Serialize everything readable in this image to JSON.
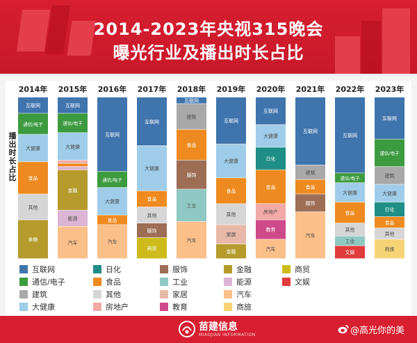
{
  "header": {
    "title_line1": "2014-2023年央视315晚会",
    "title_line2": "曝光行业及播出时长占比"
  },
  "colors": {
    "brand_red": "#d71f30"
  },
  "footer": {
    "brand": "苗建信息",
    "brand_en": "MIAOJIAN INFORMATION",
    "watermark": "@高光你的美",
    "logo_icon": "miaojian-logo-icon",
    "weibo_icon": "weibo-icon"
  },
  "chart_data": {
    "type": "bar",
    "stacked": true,
    "normalized": true,
    "title": "2014-2023年央视315晚会曝光行业及播出时长占比",
    "ylabel": "播出时长占比",
    "categories": [
      "2014年",
      "2015年",
      "2016年",
      "2017年",
      "2018年",
      "2019年",
      "2020年",
      "2021年",
      "2022年",
      "2023年"
    ],
    "industries": [
      {
        "name": "互联网",
        "color": "#3f74ad"
      },
      {
        "name": "通信/电子",
        "color": "#3c9a3f"
      },
      {
        "name": "建筑",
        "color": "#a9a9a9"
      },
      {
        "name": "大健康",
        "color": "#9fcde9"
      },
      {
        "name": "日化",
        "color": "#1f8e86"
      },
      {
        "name": "食品",
        "color": "#ee8a1f"
      },
      {
        "name": "其他",
        "color": "#d6d6d6"
      },
      {
        "name": "房地产",
        "color": "#f2aaa6"
      },
      {
        "name": "服饰",
        "color": "#9e6d55"
      },
      {
        "name": "工业",
        "color": "#8fc9c3"
      },
      {
        "name": "家居",
        "color": "#e8b9a8"
      },
      {
        "name": "教育",
        "color": "#cf4a8a"
      },
      {
        "name": "金融",
        "color": "#b49b2c"
      },
      {
        "name": "能源",
        "color": "#dcb4d4"
      },
      {
        "name": "汽车",
        "color": "#fbbf8a"
      },
      {
        "name": "商贸",
        "color": "#cdbb1c"
      },
      {
        "name": "商旅",
        "color": "#f6d476"
      },
      {
        "name": "文娱",
        "color": "#e23b3b"
      }
    ],
    "bars": [
      {
        "year": "2014年",
        "segments": [
          {
            "industry": "互联网",
            "value": 10,
            "label": "互联网"
          },
          {
            "industry": "通信/电子",
            "value": 13,
            "label": "通信/电子"
          },
          {
            "industry": "大健康",
            "value": 17,
            "label": "大健康"
          },
          {
            "industry": "食品",
            "value": 20,
            "label": "食品"
          },
          {
            "industry": "其他",
            "value": 16,
            "label": "其他"
          },
          {
            "industry": "金融",
            "value": 24,
            "label": "金融"
          }
        ]
      },
      {
        "year": "2015年",
        "segments": [
          {
            "industry": "互联网",
            "value": 10,
            "label": "互联网"
          },
          {
            "industry": "通信/电子",
            "value": 12,
            "label": "通信/电子"
          },
          {
            "industry": "大健康",
            "value": 17,
            "label": "大健康"
          },
          {
            "industry": "房地产",
            "value": 2,
            "label": ""
          },
          {
            "industry": "食品",
            "value": 2,
            "label": ""
          },
          {
            "industry": "能源",
            "value": 2,
            "label": ""
          },
          {
            "industry": "金融",
            "value": 25,
            "label": "金融"
          },
          {
            "industry": "能源",
            "value": 10,
            "label": "能源"
          },
          {
            "industry": "汽车",
            "value": 20,
            "label": "汽车"
          }
        ]
      },
      {
        "year": "2016年",
        "segments": [
          {
            "industry": "互联网",
            "value": 46,
            "label": "互联网"
          },
          {
            "industry": "通信/电子",
            "value": 10,
            "label": "通信/电子"
          },
          {
            "industry": "大健康",
            "value": 17,
            "label": "大健康"
          },
          {
            "industry": "食品",
            "value": 6,
            "label": "食品"
          },
          {
            "industry": "汽车",
            "value": 21,
            "label": "汽车"
          }
        ]
      },
      {
        "year": "2017年",
        "segments": [
          {
            "industry": "互联网",
            "value": 30,
            "label": "互联网"
          },
          {
            "industry": "大健康",
            "value": 28,
            "label": "大健康"
          },
          {
            "industry": "食品",
            "value": 10,
            "label": "食品"
          },
          {
            "industry": "其他",
            "value": 10,
            "label": "其他"
          },
          {
            "industry": "服饰",
            "value": 9,
            "label": "服饰"
          },
          {
            "industry": "商贸",
            "value": 13,
            "label": "商贸"
          }
        ]
      },
      {
        "year": "2018年",
        "segments": [
          {
            "industry": "互联网",
            "value": 4,
            "label": "互联网"
          },
          {
            "industry": "建筑",
            "value": 16,
            "label": "建筑"
          },
          {
            "industry": "食品",
            "value": 19,
            "label": "食品"
          },
          {
            "industry": "服饰",
            "value": 18,
            "label": "服饰"
          },
          {
            "industry": "工业",
            "value": 20,
            "label": "工业"
          },
          {
            "industry": "汽车",
            "value": 23,
            "label": "汽车"
          }
        ]
      },
      {
        "year": "2019年",
        "segments": [
          {
            "industry": "互联网",
            "value": 29,
            "label": "互联网"
          },
          {
            "industry": "大健康",
            "value": 21,
            "label": "大健康"
          },
          {
            "industry": "食品",
            "value": 16,
            "label": "食品"
          },
          {
            "industry": "其他",
            "value": 13,
            "label": "其他"
          },
          {
            "industry": "家居",
            "value": 12,
            "label": "家居"
          },
          {
            "industry": "金融",
            "value": 9,
            "label": "金融"
          }
        ]
      },
      {
        "year": "2020年",
        "segments": [
          {
            "industry": "互联网",
            "value": 17,
            "label": "互联网"
          },
          {
            "industry": "大健康",
            "value": 14,
            "label": "大健康"
          },
          {
            "industry": "日化",
            "value": 14,
            "label": "日化"
          },
          {
            "industry": "食品",
            "value": 21,
            "label": "食品"
          },
          {
            "industry": "房地产",
            "value": 10,
            "label": "房地产"
          },
          {
            "industry": "教育",
            "value": 12,
            "label": "教育"
          },
          {
            "industry": "汽车",
            "value": 12,
            "label": "汽车"
          }
        ]
      },
      {
        "year": "2021年",
        "segments": [
          {
            "industry": "互联网",
            "value": 42,
            "label": "互联网"
          },
          {
            "industry": "建筑",
            "value": 9,
            "label": "建筑"
          },
          {
            "industry": "食品",
            "value": 9,
            "label": "食品"
          },
          {
            "industry": "服饰",
            "value": 11,
            "label": "服饰"
          },
          {
            "industry": "汽车",
            "value": 29,
            "label": "汽车"
          }
        ]
      },
      {
        "year": "2022年",
        "segments": [
          {
            "industry": "互联网",
            "value": 47,
            "label": "互联网"
          },
          {
            "industry": "通信/电子",
            "value": 6,
            "label": "通信/电子"
          },
          {
            "industry": "大健康",
            "value": 12,
            "label": "大健康"
          },
          {
            "industry": "食品",
            "value": 13,
            "label": "食品"
          },
          {
            "industry": "其他",
            "value": 8,
            "label": "其他"
          },
          {
            "industry": "工业",
            "value": 6,
            "label": "工业"
          },
          {
            "industry": "文娱",
            "value": 8,
            "label": "文娱"
          }
        ]
      },
      {
        "year": "2023年",
        "segments": [
          {
            "industry": "互联网",
            "value": 26,
            "label": "互联网"
          },
          {
            "industry": "通信/电子",
            "value": 17,
            "label": "通信/电子"
          },
          {
            "industry": "建筑",
            "value": 11,
            "label": "建筑"
          },
          {
            "industry": "大健康",
            "value": 11,
            "label": "大健康"
          },
          {
            "industry": "日化",
            "value": 9,
            "label": "日化"
          },
          {
            "industry": "食品",
            "value": 7,
            "label": "食品"
          },
          {
            "industry": "其他",
            "value": 7,
            "label": "其他"
          },
          {
            "industry": "商旅",
            "value": 12,
            "label": "商旅"
          }
        ]
      }
    ],
    "legend": {
      "placement": "bottom",
      "rows": [
        [
          "互联网",
          "日化",
          "服饰",
          "金融",
          "商贸"
        ],
        [
          "通信/电子",
          "食品",
          "工业",
          "能源",
          "文娱"
        ],
        [
          "建筑",
          "其他",
          "家居",
          "汽车"
        ],
        [
          "大健康",
          "房地产",
          "教育",
          "商旅"
        ]
      ]
    }
  }
}
